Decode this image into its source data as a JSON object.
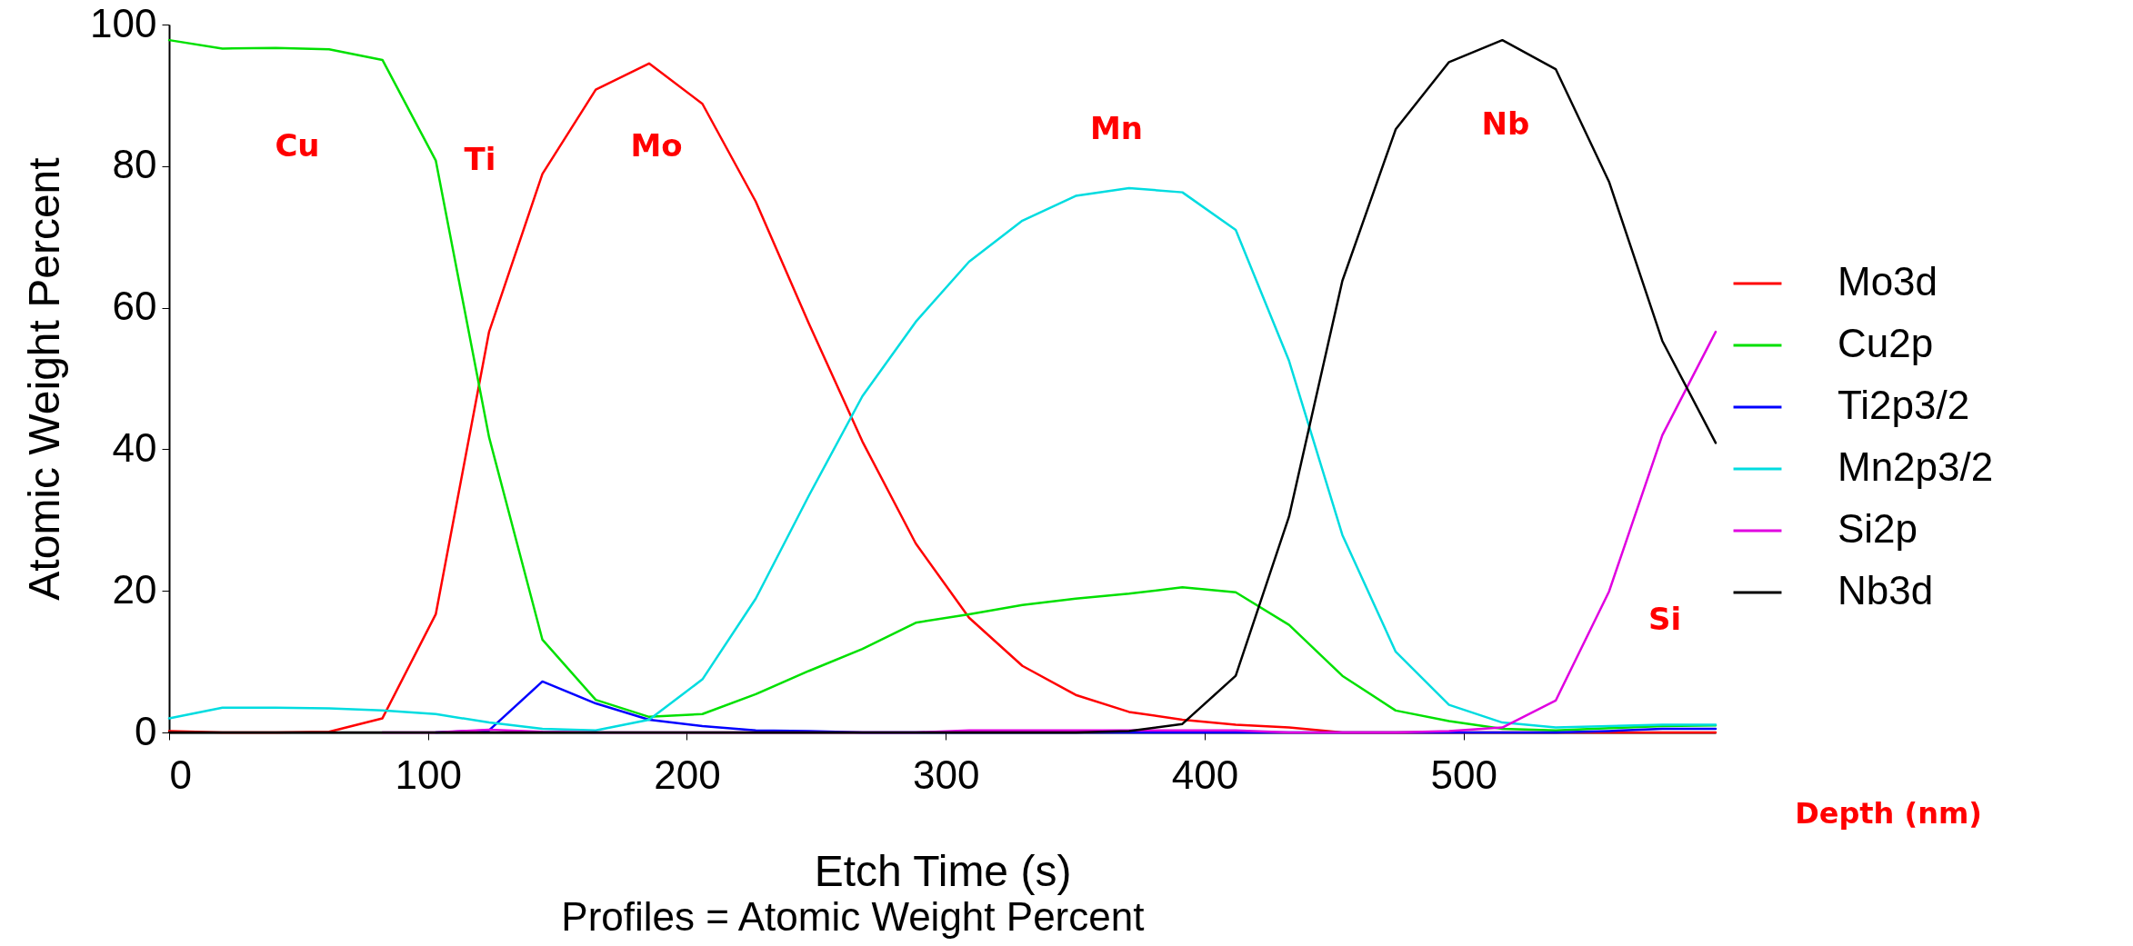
{
  "chart_data": {
    "type": "line",
    "xlabel": "Etch Time (s)",
    "ylabel": "Atomic Weight Percent",
    "x": [
      0,
      20.6,
      41.2,
      61.8,
      82.4,
      103,
      123.6,
      144.2,
      164.8,
      185.4,
      206,
      226.6,
      247.2,
      267.8,
      288.4,
      309,
      329.6,
      350.2,
      370.8,
      391.4,
      412,
      432.6,
      453.2,
      473.8,
      494.4,
      515,
      535.6,
      556.2,
      576.8,
      597.4
    ],
    "series": [
      {
        "name": "Mo3d",
        "color": "#ff0000",
        "values": [
          0.2,
          0,
          0,
          0.1,
          2.0,
          16.7,
          56.6,
          78.9,
          90.8,
          94.5,
          88.8,
          75.0,
          57.7,
          41.1,
          26.7,
          16.2,
          9.4,
          5.3,
          2.9,
          1.8,
          1.1,
          0.7,
          0,
          0,
          0,
          0,
          0,
          0,
          0,
          0
        ]
      },
      {
        "name": "Cu2p",
        "color": "#00e000",
        "values": [
          97.8,
          96.6,
          96.7,
          96.5,
          95.0,
          80.8,
          41.7,
          13.1,
          4.6,
          2.2,
          2.6,
          5.4,
          8.7,
          11.8,
          15.5,
          16.7,
          18.0,
          18.9,
          19.6,
          20.5,
          19.8,
          15.2,
          8.0,
          3.1,
          1.6,
          0.5,
          0.3,
          0.6,
          0.9,
          1.0
        ]
      },
      {
        "name": "Ti2p3/2",
        "color": "#0000ff",
        "values": [
          null,
          null,
          null,
          null,
          null,
          0,
          0.3,
          7.2,
          4.1,
          1.8,
          0.9,
          0.3,
          0.2,
          0,
          0,
          0,
          0,
          0,
          0,
          0,
          0,
          0,
          0,
          0,
          0,
          0,
          0,
          0.2,
          0.5,
          0.5
        ]
      },
      {
        "name": "Mn2p3/2",
        "color": "#00dce0",
        "values": [
          2.0,
          3.5,
          3.5,
          3.4,
          3.1,
          2.6,
          1.4,
          0.5,
          0.3,
          1.8,
          7.5,
          18.9,
          33.5,
          47.5,
          58.0,
          66.5,
          72.3,
          75.8,
          76.9,
          76.3,
          71.0,
          52.5,
          27.9,
          11.4,
          3.9,
          1.4,
          0.7,
          0.9,
          1.1,
          1.1
        ]
      },
      {
        "name": "Si2p",
        "color": "#e000e0",
        "values": [
          null,
          null,
          null,
          null,
          0,
          0,
          0.4,
          0.1,
          0,
          0,
          0,
          0,
          0,
          0,
          0,
          0.3,
          0.3,
          0.3,
          0.3,
          0.3,
          0.3,
          0,
          0,
          0,
          0.2,
          0.7,
          4.5,
          19.9,
          42.0,
          56.6
        ]
      },
      {
        "name": "Nb3d",
        "color": "#000000",
        "values": [
          0,
          0,
          0,
          0,
          0,
          0,
          0,
          0,
          0,
          0,
          0,
          0,
          0,
          0,
          0,
          0,
          0,
          0,
          0.2,
          1.2,
          8.0,
          30.5,
          63.8,
          85.2,
          94.7,
          97.8,
          93.7,
          77.8,
          55.3,
          40.9
        ]
      }
    ],
    "xlim": [
      0,
      597.4
    ],
    "xticks": [
      0,
      100,
      200,
      300,
      400,
      500
    ],
    "ylim": [
      0,
      100
    ],
    "yticks": [
      0,
      20,
      40,
      60,
      80,
      100
    ],
    "legend": "right",
    "grid": false,
    "marker": "none",
    "line_style": "solid",
    "annotations": [
      "Cu",
      "Ti",
      "Mo",
      "Mn",
      "Nb",
      "Si",
      "Depth (nm)",
      "Profiles = Atomic Weight Percent"
    ]
  }
}
